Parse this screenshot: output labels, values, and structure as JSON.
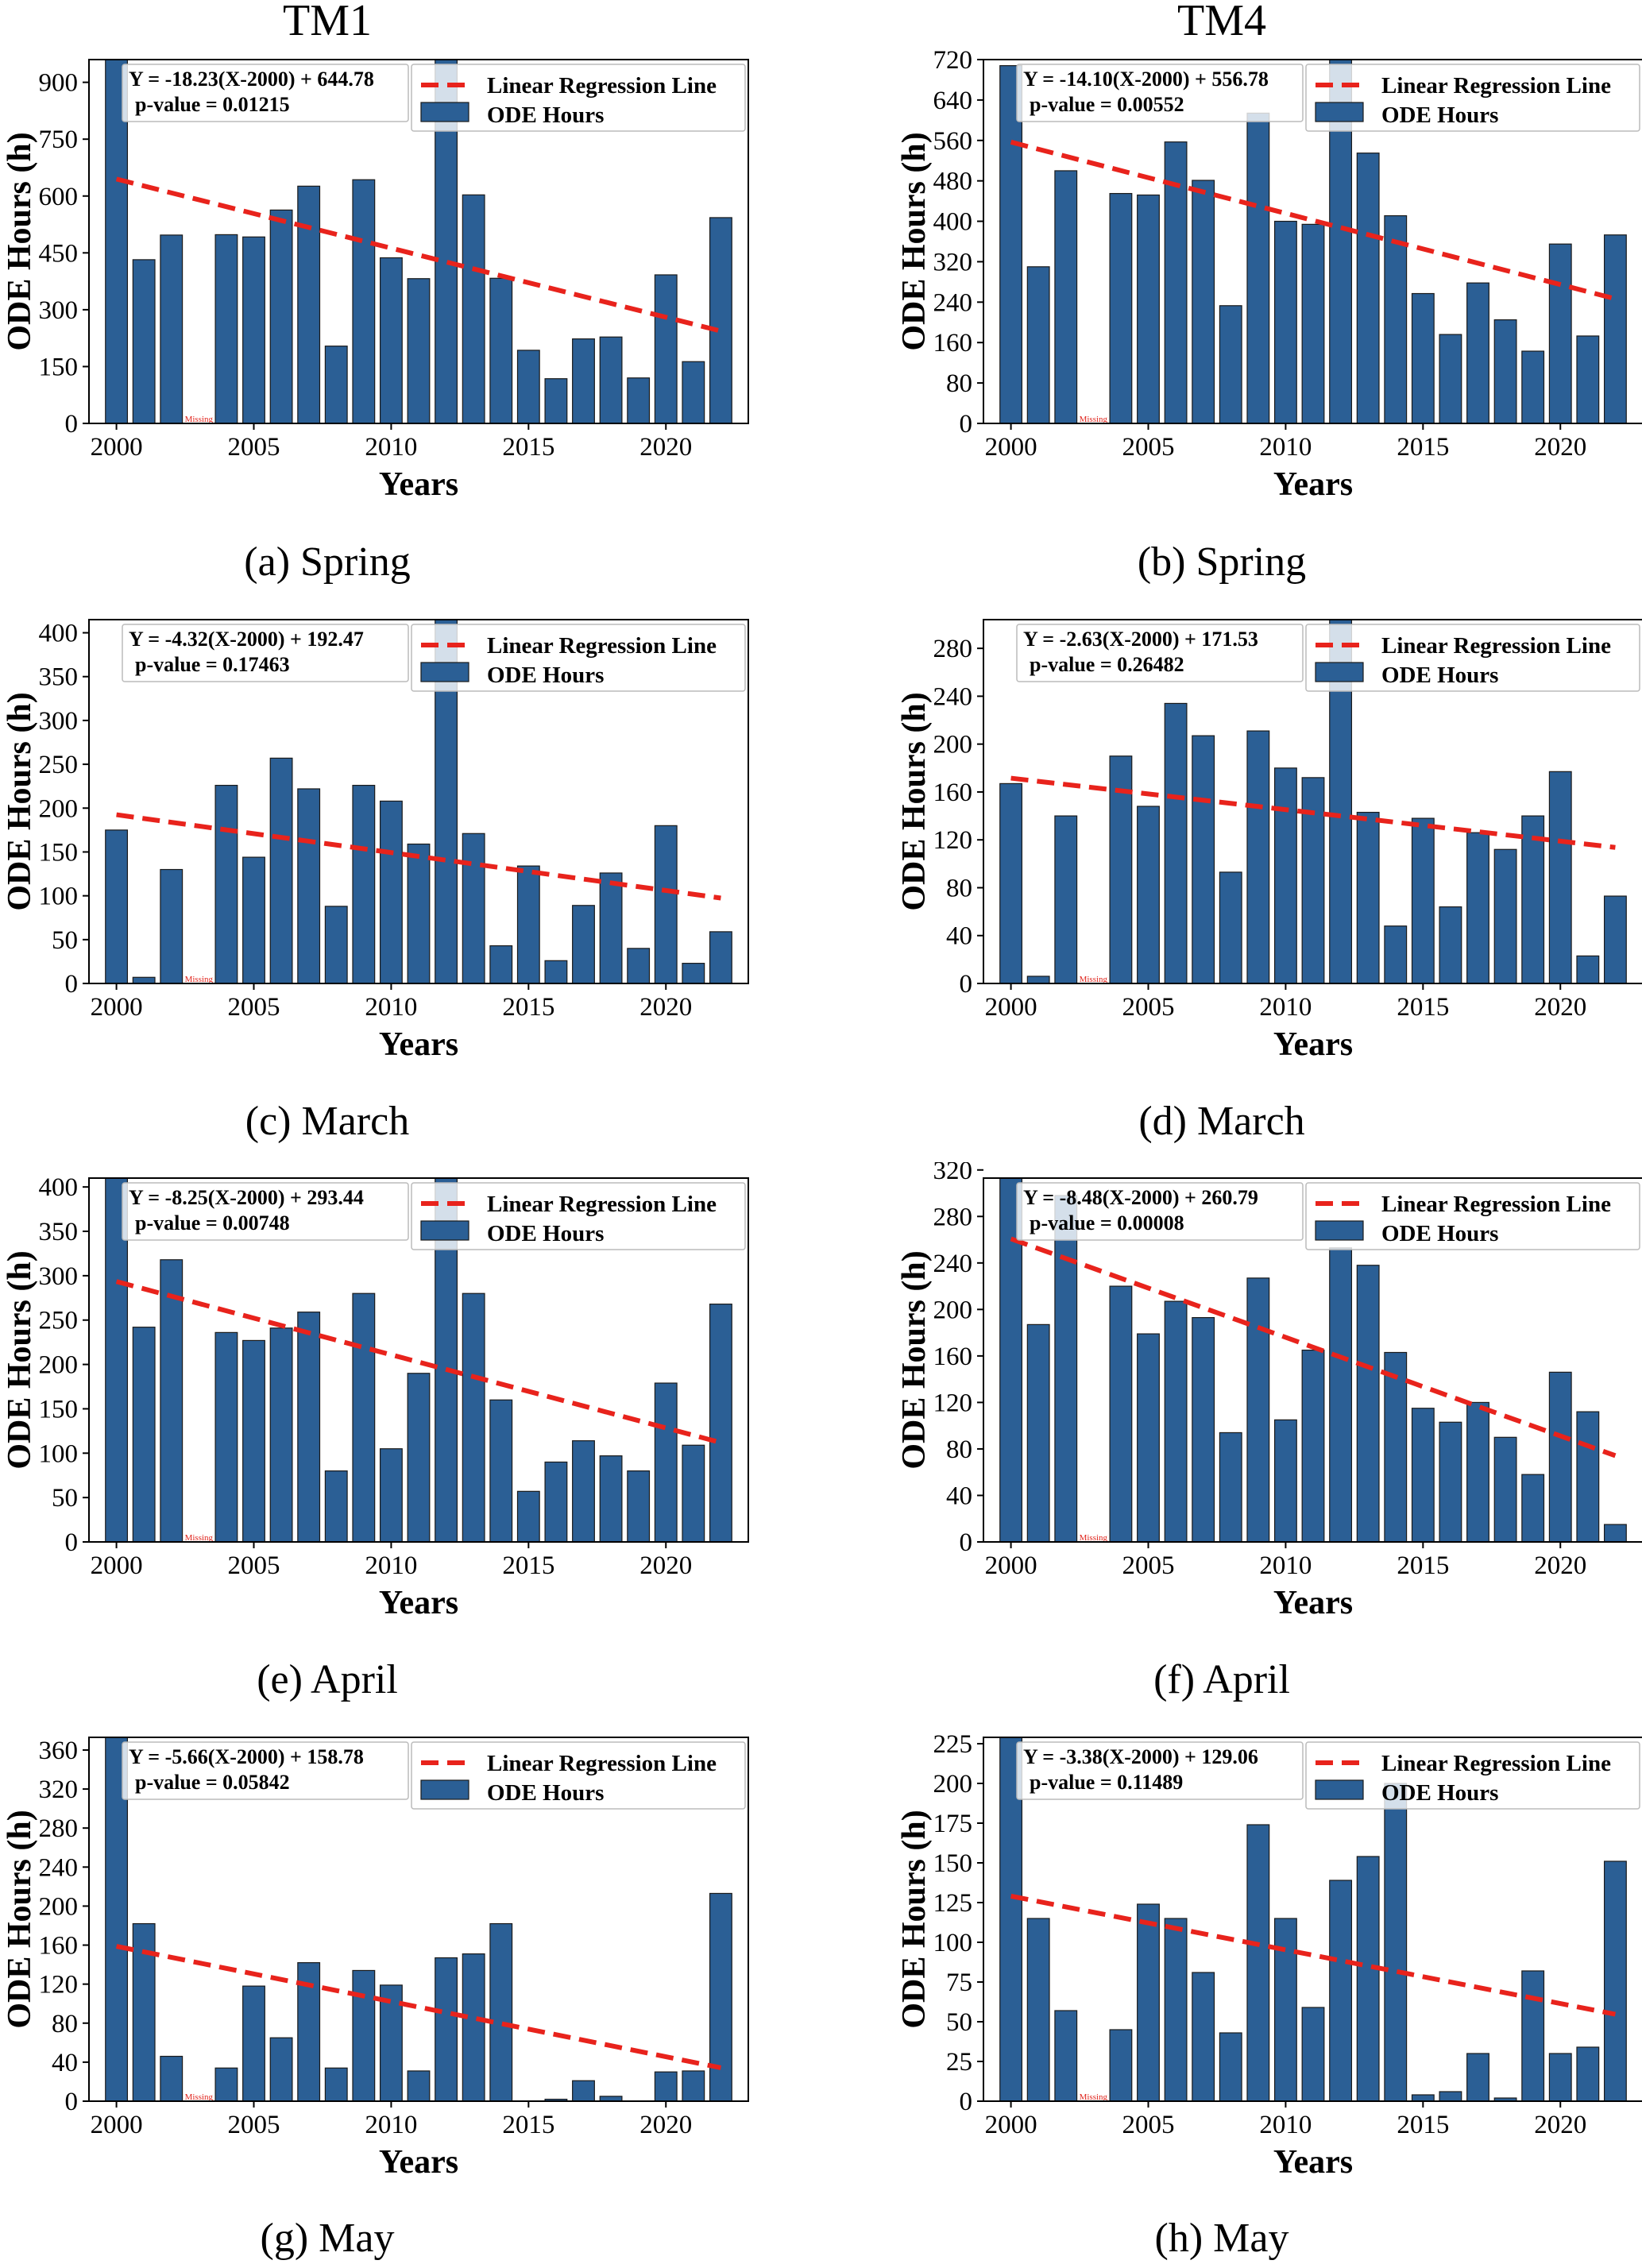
{
  "column_titles": [
    "TM1",
    "TM4"
  ],
  "captions": [
    "(a) Spring",
    "(b) Spring",
    "(c) March",
    "(d) March",
    "(e) April",
    "(f) April",
    "(g) May",
    "(h) May"
  ],
  "colors": {
    "bar": "#2b5f95",
    "bar_edge": "#1a1a1a",
    "regression": "#e8231c",
    "missing_label": "#e0231b"
  },
  "chart_data": [
    {
      "type": "bar",
      "station": "TM1",
      "caption": "(a) Spring",
      "xlabel": "Years",
      "ylabel": "ODE Hours (h)",
      "xlim": [
        1999,
        2023
      ],
      "ylim": [
        0,
        960
      ],
      "xticks": [
        2000,
        2005,
        2010,
        2015,
        2020
      ],
      "yticks": [
        0,
        150,
        300,
        450,
        600,
        750,
        900
      ],
      "x": [
        2000,
        2001,
        2002,
        2003,
        2004,
        2005,
        2006,
        2007,
        2008,
        2009,
        2010,
        2011,
        2012,
        2013,
        2014,
        2015,
        2016,
        2017,
        2018,
        2019,
        2020,
        2021,
        2022
      ],
      "values": [
        960,
        432,
        497,
        null,
        498,
        492,
        563,
        626,
        204,
        643,
        437,
        382,
        960,
        603,
        383,
        193,
        118,
        223,
        228,
        120,
        392,
        163,
        543
      ],
      "missing": [
        2003
      ],
      "missing_label": "Missing",
      "series": [
        {
          "name": "Linear Regression Line",
          "kind": "line",
          "slope": -18.23,
          "intercept": 644.78,
          "x_ref": 2000
        },
        {
          "name": "ODE Hours",
          "kind": "bar"
        }
      ],
      "equation": "Y = -18.23(X-2000) + 644.78",
      "p_value": "p-value = 0.01215",
      "legend": "top-right"
    },
    {
      "type": "bar",
      "station": "TM4",
      "caption": "(b) Spring",
      "xlabel": "Years",
      "ylabel": "ODE Hours (h)",
      "xlim": [
        1999,
        2023
      ],
      "ylim": [
        0,
        720
      ],
      "xticks": [
        2000,
        2005,
        2010,
        2015,
        2020
      ],
      "yticks": [
        0,
        80,
        160,
        240,
        320,
        400,
        480,
        560,
        640,
        720
      ],
      "x": [
        2000,
        2001,
        2002,
        2003,
        2004,
        2005,
        2006,
        2007,
        2008,
        2009,
        2010,
        2011,
        2012,
        2013,
        2014,
        2015,
        2016,
        2017,
        2018,
        2019,
        2020,
        2021,
        2022
      ],
      "values": [
        708,
        310,
        500,
        null,
        455,
        452,
        557,
        481,
        233,
        614,
        400,
        394,
        720,
        535,
        411,
        257,
        176,
        278,
        205,
        143,
        355,
        173,
        373
      ],
      "missing": [
        2003
      ],
      "missing_label": "Missing",
      "series": [
        {
          "name": "Linear Regression Line",
          "kind": "line",
          "slope": -14.1,
          "intercept": 556.78,
          "x_ref": 2000
        },
        {
          "name": "ODE Hours",
          "kind": "bar"
        }
      ],
      "equation": "Y = -14.10(X-2000) + 556.78",
      "p_value": "p-value = 0.00552",
      "legend": "top-right"
    },
    {
      "type": "bar",
      "station": "TM1",
      "caption": "(c) March",
      "xlabel": "Years",
      "ylabel": "ODE Hours (h)",
      "xlim": [
        1999,
        2023
      ],
      "ylim": [
        0,
        415
      ],
      "xticks": [
        2000,
        2005,
        2010,
        2015,
        2020
      ],
      "yticks": [
        0,
        50,
        100,
        150,
        200,
        250,
        300,
        350,
        400
      ],
      "x": [
        2000,
        2001,
        2002,
        2003,
        2004,
        2005,
        2006,
        2007,
        2008,
        2009,
        2010,
        2011,
        2012,
        2013,
        2014,
        2015,
        2016,
        2017,
        2018,
        2019,
        2020,
        2021,
        2022
      ],
      "values": [
        175,
        7,
        130,
        null,
        226,
        144,
        257,
        222,
        88,
        226,
        208,
        159,
        415,
        171,
        43,
        134,
        26,
        89,
        126,
        40,
        180,
        23,
        59
      ],
      "missing": [
        2003
      ],
      "missing_label": "Missing",
      "series": [
        {
          "name": "Linear Regression Line",
          "kind": "line",
          "slope": -4.32,
          "intercept": 192.47,
          "x_ref": 2000
        },
        {
          "name": "ODE Hours",
          "kind": "bar"
        }
      ],
      "equation": "Y = -4.32(X-2000) + 192.47",
      "p_value": "p-value = 0.17463",
      "legend": "top-right"
    },
    {
      "type": "bar",
      "station": "TM4",
      "caption": "(d) March",
      "xlabel": "Years",
      "ylabel": "ODE Hours (h)",
      "xlim": [
        1999,
        2023
      ],
      "ylim": [
        0,
        304
      ],
      "xticks": [
        2000,
        2005,
        2010,
        2015,
        2020
      ],
      "yticks": [
        0,
        40,
        80,
        120,
        160,
        200,
        240,
        280
      ],
      "x": [
        2000,
        2001,
        2002,
        2003,
        2004,
        2005,
        2006,
        2007,
        2008,
        2009,
        2010,
        2011,
        2012,
        2013,
        2014,
        2015,
        2016,
        2017,
        2018,
        2019,
        2020,
        2021,
        2022
      ],
      "values": [
        167,
        6,
        140,
        null,
        190,
        148,
        234,
        207,
        93,
        211,
        180,
        172,
        304,
        143,
        48,
        138,
        64,
        126,
        112,
        140,
        177,
        23,
        73
      ],
      "missing": [
        2003
      ],
      "missing_label": "Missing",
      "series": [
        {
          "name": "Linear Regression Line",
          "kind": "line",
          "slope": -2.63,
          "intercept": 171.53,
          "x_ref": 2000
        },
        {
          "name": "ODE Hours",
          "kind": "bar"
        }
      ],
      "equation": "Y = -2.63(X-2000) + 171.53",
      "p_value": "p-value = 0.26482",
      "legend": "top-right"
    },
    {
      "type": "bar",
      "station": "TM1",
      "caption": "(e) April",
      "xlabel": "Years",
      "ylabel": "ODE Hours (h)",
      "xlim": [
        1999,
        2023
      ],
      "ylim": [
        0,
        410
      ],
      "xticks": [
        2000,
        2005,
        2010,
        2015,
        2020
      ],
      "yticks": [
        0,
        50,
        100,
        150,
        200,
        250,
        300,
        350,
        400
      ],
      "x": [
        2000,
        2001,
        2002,
        2003,
        2004,
        2005,
        2006,
        2007,
        2008,
        2009,
        2010,
        2011,
        2012,
        2013,
        2014,
        2015,
        2016,
        2017,
        2018,
        2019,
        2020,
        2021,
        2022
      ],
      "values": [
        410,
        242,
        318,
        null,
        236,
        227,
        241,
        259,
        80,
        280,
        105,
        190,
        410,
        280,
        160,
        57,
        90,
        114,
        97,
        80,
        179,
        109,
        268
      ],
      "missing": [
        2003
      ],
      "missing_label": "Missing",
      "series": [
        {
          "name": "Linear Regression Line",
          "kind": "line",
          "slope": -8.25,
          "intercept": 293.44,
          "x_ref": 2000
        },
        {
          "name": "ODE Hours",
          "kind": "bar"
        }
      ],
      "equation": "Y = -8.25(X-2000) + 293.44",
      "p_value": "p-value = 0.00748",
      "legend": "top-right"
    },
    {
      "type": "bar",
      "station": "TM4",
      "caption": "(f) April",
      "xlabel": "Years",
      "ylabel": "ODE Hours (h)",
      "xlim": [
        1999,
        2023
      ],
      "ylim": [
        0,
        313
      ],
      "xticks": [
        2000,
        2005,
        2010,
        2015,
        2020
      ],
      "yticks": [
        0,
        40,
        80,
        120,
        160,
        200,
        240,
        280,
        320
      ],
      "x": [
        2000,
        2001,
        2002,
        2003,
        2004,
        2005,
        2006,
        2007,
        2008,
        2009,
        2010,
        2011,
        2012,
        2013,
        2014,
        2015,
        2016,
        2017,
        2018,
        2019,
        2020,
        2021,
        2022
      ],
      "values": [
        313,
        187,
        298,
        null,
        220,
        179,
        207,
        193,
        94,
        227,
        105,
        165,
        253,
        238,
        163,
        115,
        103,
        120,
        90,
        58,
        146,
        112,
        15
      ],
      "missing": [
        2003
      ],
      "missing_label": "Missing",
      "series": [
        {
          "name": "Linear Regression Line",
          "kind": "line",
          "slope": -8.48,
          "intercept": 260.79,
          "x_ref": 2000
        },
        {
          "name": "ODE Hours",
          "kind": "bar"
        }
      ],
      "equation": "Y = -8.48(X-2000) + 260.79",
      "p_value": "p-value = 0.00008",
      "legend": "top-right"
    },
    {
      "type": "bar",
      "station": "TM1",
      "caption": "(g) May",
      "xlabel": "Years",
      "ylabel": "ODE Hours (h)",
      "xlim": [
        1999,
        2023
      ],
      "ylim": [
        0,
        373
      ],
      "xticks": [
        2000,
        2005,
        2010,
        2015,
        2020
      ],
      "yticks": [
        0,
        40,
        80,
        120,
        160,
        200,
        240,
        280,
        320,
        360
      ],
      "x": [
        2000,
        2001,
        2002,
        2003,
        2004,
        2005,
        2006,
        2007,
        2008,
        2009,
        2010,
        2011,
        2012,
        2013,
        2014,
        2015,
        2016,
        2017,
        2018,
        2019,
        2020,
        2021,
        2022
      ],
      "values": [
        373,
        182,
        46,
        null,
        34,
        118,
        65,
        142,
        34,
        134,
        119,
        31,
        147,
        151,
        182,
        0,
        2,
        21,
        5,
        0,
        30,
        31,
        213
      ],
      "missing": [
        2003
      ],
      "missing_label": "Missing",
      "series": [
        {
          "name": "Linear Regression Line",
          "kind": "line",
          "slope": -5.66,
          "intercept": 158.78,
          "x_ref": 2000
        },
        {
          "name": "ODE Hours",
          "kind": "bar"
        }
      ],
      "equation": "Y = -5.66(X-2000) + 158.78",
      "p_value": "p-value = 0.05842",
      "legend": "top-right"
    },
    {
      "type": "bar",
      "station": "TM4",
      "caption": "(h) May",
      "xlabel": "Years",
      "ylabel": "ODE Hours (h)",
      "xlim": [
        1999,
        2023
      ],
      "ylim": [
        0,
        229
      ],
      "xticks": [
        2000,
        2005,
        2010,
        2015,
        2020
      ],
      "yticks": [
        0,
        25,
        50,
        75,
        100,
        125,
        150,
        175,
        200,
        225
      ],
      "x": [
        2000,
        2001,
        2002,
        2003,
        2004,
        2005,
        2006,
        2007,
        2008,
        2009,
        2010,
        2011,
        2012,
        2013,
        2014,
        2015,
        2016,
        2017,
        2018,
        2019,
        2020,
        2021,
        2022
      ],
      "values": [
        229,
        115,
        57,
        null,
        45,
        124,
        115,
        81,
        43,
        174,
        115,
        59,
        139,
        154,
        200,
        4,
        6,
        30,
        2,
        82,
        30,
        34,
        151
      ],
      "missing": [
        2003
      ],
      "missing_label": "Missing",
      "series": [
        {
          "name": "Linear Regression Line",
          "kind": "line",
          "slope": -3.38,
          "intercept": 129.06,
          "x_ref": 2000
        },
        {
          "name": "ODE Hours",
          "kind": "bar"
        }
      ],
      "equation": "Y = -3.38(X-2000) + 129.06",
      "p_value": "p-value = 0.11489",
      "legend": "top-right"
    }
  ]
}
